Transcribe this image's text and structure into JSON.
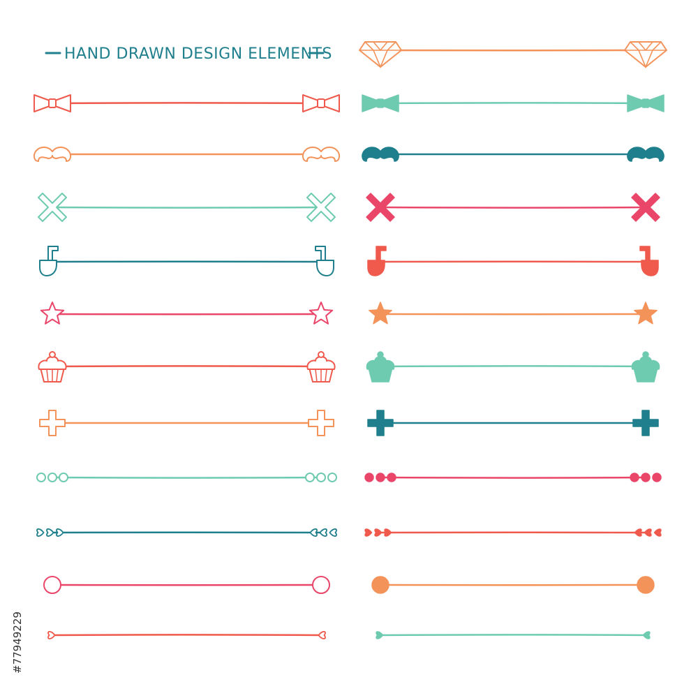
{
  "title": "HAND DRAWN DESIGN ELEMENTS",
  "side_label": "#77949229",
  "colors": {
    "red": "#ef5a4c",
    "orange": "#f3935a",
    "mint": "#6fcbb0",
    "teal": "#1f7f8c",
    "pink": "#e9466a",
    "title": "#1f7f8c",
    "side": "#333333"
  },
  "rows": [
    {
      "left": {
        "icon": "bow-tie",
        "style": "outline",
        "color": "red"
      },
      "right": {
        "icon": "diamond",
        "style": "outline",
        "color": "orange"
      }
    },
    {
      "left": {
        "icon": "mustache",
        "style": "outline",
        "color": "orange"
      },
      "right": {
        "icon": "bow-tie",
        "style": "filled",
        "color": "mint"
      }
    },
    {
      "left": {
        "icon": "cross-x",
        "style": "outline",
        "color": "mint"
      },
      "right": {
        "icon": "mustache",
        "style": "filled",
        "color": "teal"
      }
    },
    {
      "left": {
        "icon": "pipe",
        "style": "outline",
        "color": "teal"
      },
      "right": {
        "icon": "cross-x",
        "style": "filled",
        "color": "pink"
      }
    },
    {
      "left": {
        "icon": "star",
        "style": "outline",
        "color": "pink"
      },
      "right": {
        "icon": "pipe",
        "style": "filled",
        "color": "red"
      }
    },
    {
      "left": {
        "icon": "cupcake",
        "style": "outline",
        "color": "red"
      },
      "right": {
        "icon": "star",
        "style": "filled",
        "color": "orange"
      }
    },
    {
      "left": {
        "icon": "plus-cross",
        "style": "outline",
        "color": "orange"
      },
      "right": {
        "icon": "cupcake",
        "style": "filled",
        "color": "mint"
      }
    },
    {
      "left": {
        "icon": "three-circles",
        "style": "outline",
        "color": "mint"
      },
      "right": {
        "icon": "plus-cross",
        "style": "filled",
        "color": "teal"
      }
    },
    {
      "left": {
        "icon": "three-hearts",
        "style": "outline",
        "color": "teal"
      },
      "right": {
        "icon": "three-circles",
        "style": "filled",
        "color": "pink"
      }
    },
    {
      "left": {
        "icon": "big-circle",
        "style": "outline",
        "color": "pink"
      },
      "right": {
        "icon": "three-hearts",
        "style": "filled",
        "color": "red"
      }
    },
    {
      "left": {
        "icon": "small-heart",
        "style": "outline",
        "color": "red"
      },
      "right": {
        "icon": "big-circle",
        "style": "filled",
        "color": "orange"
      }
    },
    {
      "left": null,
      "right": {
        "icon": "small-heart",
        "style": "filled",
        "color": "mint"
      }
    }
  ]
}
